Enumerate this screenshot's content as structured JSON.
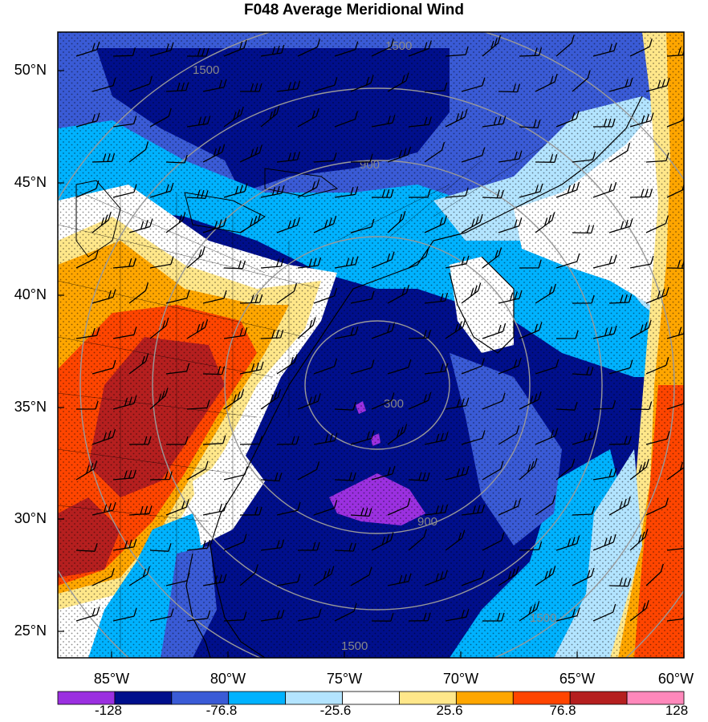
{
  "title": "F048 Average Meridional Wind",
  "lat_labels": [
    "50°N",
    "45°N",
    "40°N",
    "35°N",
    "30°N",
    "25°N"
  ],
  "lon_labels": [
    "85°W",
    "80°W",
    "75°W",
    "70°W",
    "65°W",
    "60°W"
  ],
  "range_ring_labels": [
    "300",
    "900",
    "1500"
  ],
  "colorbar": {
    "colors": [
      "#9b30e0",
      "#000f8c",
      "#3a5bd6",
      "#00b2ff",
      "#b3e4ff",
      "#ffffff",
      "#ffe78a",
      "#ffa600",
      "#ff4500",
      "#b51f1f",
      "#ff88bb"
    ],
    "labels": [
      "-128",
      "-76.8",
      "-25.6",
      "25.6",
      "76.8",
      "128"
    ]
  },
  "colors": {
    "ring": "#999999",
    "coast": "#000000"
  }
}
